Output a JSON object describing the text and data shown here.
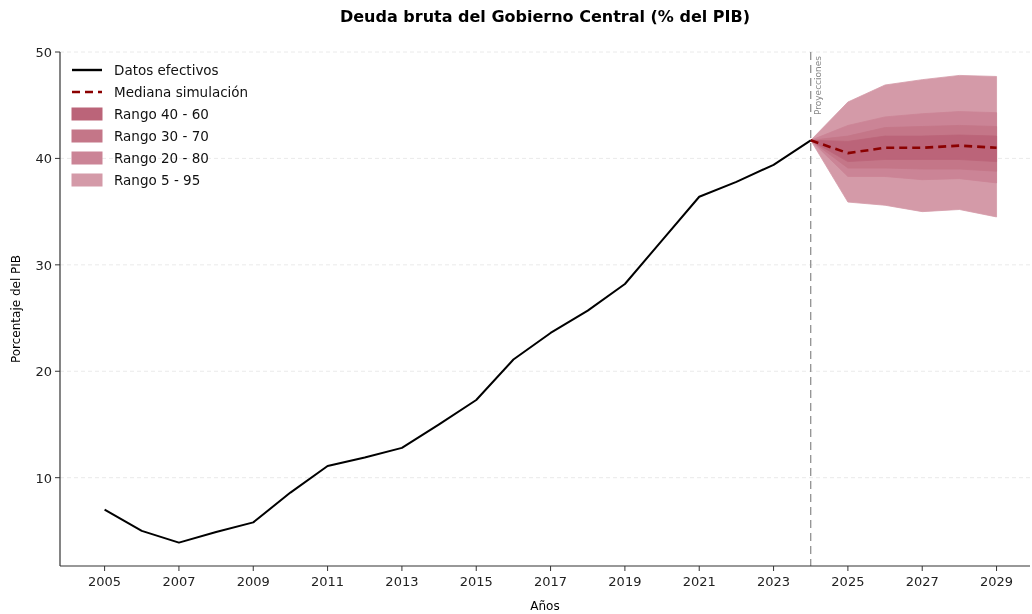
{
  "chart_data": {
    "type": "line",
    "title": "Deuda bruta del Gobierno Central (% del PIB)",
    "xlabel": "Años",
    "ylabel": "Porcentaje del PIB",
    "xlim": [
      2003.8,
      2029.9
    ],
    "xticks": [
      2005,
      2007,
      2009,
      2011,
      2013,
      2015,
      2017,
      2019,
      2021,
      2023,
      2025,
      2027,
      2029
    ],
    "ylim": [
      1.7,
      50
    ],
    "yticks": [
      10,
      20,
      30,
      40,
      50
    ],
    "grid": "y",
    "legend": "top left",
    "series": [
      {
        "name": "Datos efectivos",
        "type": "line",
        "color": "#000000",
        "line_style": "solid",
        "x": [
          2005,
          2006,
          2007,
          2008,
          2009,
          2010,
          2011,
          2012,
          2013,
          2014,
          2015,
          2016,
          2017,
          2018,
          2019,
          2020,
          2021,
          2022,
          2023,
          2024
        ],
        "values": [
          7.0,
          5.0,
          3.9,
          4.9,
          5.8,
          8.6,
          11.1,
          11.9,
          12.8,
          15.0,
          17.3,
          21.1,
          23.6,
          25.7,
          28.2,
          32.3,
          36.4,
          37.8,
          39.4,
          41.7
        ]
      },
      {
        "name": "Mediana simulación",
        "type": "line",
        "color": "#8b0000",
        "line_style": "dashed",
        "x": [
          2024,
          2025,
          2026,
          2027,
          2028,
          2029
        ],
        "values": [
          41.7,
          40.5,
          41.0,
          41.0,
          41.2,
          41.0
        ]
      },
      {
        "name": "Rango 5 - 95",
        "color": "#d49aa8",
        "x": [
          2024,
          2025,
          2026,
          2027,
          2028,
          2029
        ],
        "values": [
          null,
          null,
          null,
          null,
          null,
          null
        ],
        "lower": [
          41.7,
          35.9,
          35.6,
          35.0,
          35.2,
          34.5
        ],
        "upper": [
          41.7,
          45.3,
          46.9,
          47.4,
          47.8,
          47.7
        ]
      },
      {
        "name": "Rango 20 - 80",
        "color": "#cb8496",
        "x": [
          2024,
          2025,
          2026,
          2027,
          2028,
          2029
        ],
        "values": [
          null,
          null,
          null,
          null,
          null,
          null
        ],
        "lower": [
          41.7,
          38.3,
          38.3,
          38.0,
          38.1,
          37.7
        ],
        "upper": [
          41.7,
          43.1,
          43.9,
          44.2,
          44.4,
          44.3
        ]
      },
      {
        "name": "Rango 30 - 70",
        "color": "#c47688",
        "x": [
          2024,
          2025,
          2026,
          2027,
          2028,
          2029
        ],
        "values": [
          null,
          null,
          null,
          null,
          null,
          null
        ],
        "lower": [
          41.7,
          39.1,
          39.1,
          39.0,
          39.0,
          38.8
        ],
        "upper": [
          41.7,
          42.1,
          42.9,
          43.0,
          43.1,
          43.0
        ]
      },
      {
        "name": "Rango 40 - 60",
        "color": "#bb6479",
        "x": [
          2024,
          2025,
          2026,
          2027,
          2028,
          2029
        ],
        "values": [
          null,
          null,
          null,
          null,
          null,
          null
        ],
        "lower": [
          41.7,
          39.7,
          39.9,
          39.9,
          39.9,
          39.7
        ],
        "upper": [
          41.7,
          41.6,
          42.1,
          42.1,
          42.2,
          42.1
        ]
      }
    ],
    "ref_lines": [
      {
        "axis": "x",
        "value": 2024,
        "label": "Proyecciones",
        "color": "#888888",
        "line_style": "dashed"
      }
    ]
  }
}
